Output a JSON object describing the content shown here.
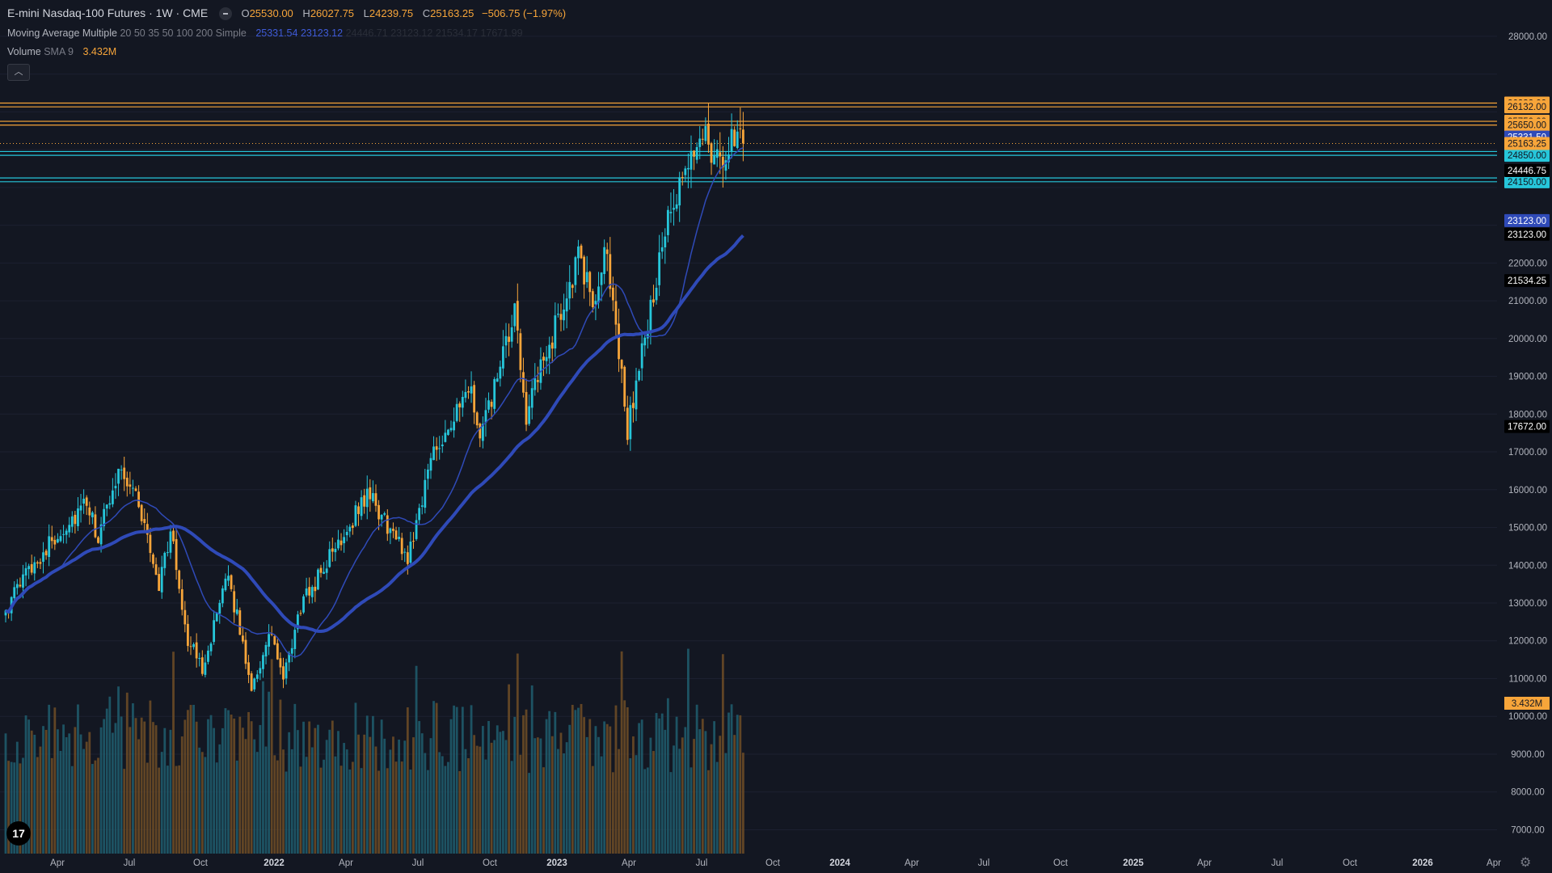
{
  "header": {
    "symbol": "E-mini Nasdaq-100 Futures · 1W · CME",
    "o_label": "O",
    "o": "25530.00",
    "h_label": "H",
    "h": "26027.75",
    "l_label": "L",
    "l": "24239.75",
    "c_label": "C",
    "c": "25163.25",
    "change": "−506.75 (−1.97%)"
  },
  "indicators": {
    "ma_name": "Moving Average Multiple",
    "ma_params": "20 50 35 50 100 200 Simple",
    "ma_values": [
      "25331.54",
      "23123.12",
      "24446.71",
      "23123.12",
      "21534.17",
      "17671.99"
    ],
    "volume_name": "Volume",
    "volume_params": "SMA 9",
    "volume_value": "3.432M"
  },
  "colors": {
    "background": "#131722",
    "up": "#26c6da",
    "down": "#f7a53a",
    "ma_fast": "#2f4ab8",
    "ma_slow": "#2f4ab8",
    "level_orange": "#f7a53a",
    "level_cyan": "#26c6da"
  },
  "chart_data": {
    "type": "candlestick",
    "title": "E-mini Nasdaq-100 Futures · 1W · CME",
    "xlabel": "",
    "ylabel": "",
    "ylim": [
      6400,
      28500
    ],
    "y_ticks": [
      "7000.00",
      "8000.00",
      "9000.00",
      "10000.00",
      "11000.00",
      "12000.00",
      "13000.00",
      "14000.00",
      "15000.00",
      "16000.00",
      "17000.00",
      "18000.00",
      "19000.00",
      "20000.00",
      "21000.00",
      "22000.00",
      "28000.00"
    ],
    "x_ticks": [
      "Apr",
      "Jul",
      "Oct",
      "2022",
      "Apr",
      "Jul",
      "Oct",
      "2023",
      "Apr",
      "Jul",
      "Oct",
      "2024",
      "Apr",
      "Jul",
      "Oct",
      "2025",
      "Apr",
      "Jul",
      "Oct",
      "2026",
      "Apr"
    ],
    "x_ticks_bold": [
      "2022",
      "2023",
      "2024",
      "2025",
      "2026"
    ],
    "price_key_points": [
      [
        "2021-02-22",
        12800
      ],
      [
        "2021-04-19",
        13900
      ],
      [
        "2021-07-05",
        14900
      ],
      [
        "2021-09-06",
        15600
      ],
      [
        "2021-10-04",
        14700
      ],
      [
        "2021-11-22",
        16600
      ],
      [
        "2022-01-03",
        15900
      ],
      [
        "2022-02-28",
        13500
      ],
      [
        "2022-03-28",
        14900
      ],
      [
        "2022-05-09",
        12000
      ],
      [
        "2022-06-13",
        11300
      ],
      [
        "2022-08-15",
        13700
      ],
      [
        "2022-10-10",
        10800
      ],
      [
        "2022-11-28",
        12200
      ],
      [
        "2022-12-26",
        10900
      ],
      [
        "2023-02-06",
        12900
      ],
      [
        "2023-07-17",
        15900
      ],
      [
        "2023-10-23",
        14200
      ],
      [
        "2023-12-25",
        17100
      ],
      [
        "2024-03-25",
        18600
      ],
      [
        "2024-04-15",
        17300
      ],
      [
        "2024-07-08",
        20600
      ],
      [
        "2024-08-05",
        18000
      ],
      [
        "2024-12-09",
        22100
      ],
      [
        "2025-01-13",
        21000
      ],
      [
        "2025-02-17",
        22300
      ],
      [
        "2025-04-07",
        17600
      ],
      [
        "2025-07-07",
        22800
      ],
      [
        "2025-10-06",
        25600
      ],
      [
        "2025-11-17",
        24500
      ],
      [
        "2026-01-05",
        25800
      ],
      [
        "2026-01-12",
        25163
      ]
    ],
    "volume_ylim": [
      0,
      13000000
    ],
    "moving_averages": [
      {
        "period": 20,
        "line": "thin"
      },
      {
        "period": 50,
        "line": "thick"
      }
    ],
    "price_levels": [
      {
        "label": "26232.00",
        "value": 26232,
        "color": "orange"
      },
      {
        "label": "26132.00",
        "value": 26132,
        "color": "orange"
      },
      {
        "label": "25750.00",
        "value": 25750,
        "color": "orange"
      },
      {
        "label": "25650.00",
        "value": 25650,
        "color": "orange"
      },
      {
        "label": "24950.00",
        "value": 24950,
        "color": "cyan"
      },
      {
        "label": "24850.00",
        "value": 24850,
        "color": "cyan"
      },
      {
        "label": "24250.00",
        "value": 24250,
        "color": "cyan"
      },
      {
        "label": "24150.00",
        "value": 24150,
        "color": "cyan"
      }
    ],
    "price_tags": [
      {
        "label": "25331.50",
        "value": 25331,
        "kind": "ma20"
      },
      {
        "label": "25163.25",
        "value": 25163,
        "kind": "last"
      },
      {
        "label": "24446.75",
        "value": 24447,
        "kind": "black"
      },
      {
        "label": "23123.00",
        "value": 23123,
        "kind": "ma50"
      },
      {
        "label": "23123.00",
        "value": 22760,
        "kind": "black"
      },
      {
        "label": "21534.25",
        "value": 21534,
        "kind": "black"
      },
      {
        "label": "17672.00",
        "value": 17672,
        "kind": "black"
      }
    ],
    "volume_tag": "3.432M"
  }
}
